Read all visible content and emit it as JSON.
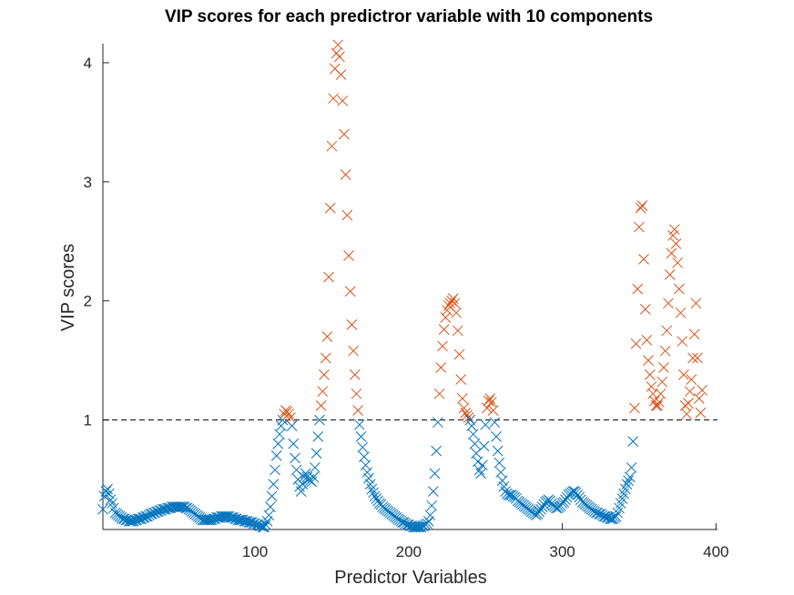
{
  "chart_data": {
    "type": "scatter",
    "title": "VIP scores for each predictror variable with 10 components",
    "xlabel": "Predictor Variables",
    "ylabel": "VIP scores",
    "xlim": [
      1,
      401
    ],
    "ylim": [
      0.08,
      4.16
    ],
    "xticks": [
      100,
      200,
      300,
      400
    ],
    "yticks": [
      1,
      2,
      3,
      4
    ],
    "grid": false,
    "legend": "none",
    "marker": "x",
    "threshold": 1,
    "threshold_style": "dashed",
    "colors": {
      "below": "#0072BD",
      "above": "#D95319",
      "threshold": "#000000",
      "axis": "#262626"
    },
    "series": [
      {
        "values": [
          0.25,
          0.36,
          0.4,
          0.42,
          0.38,
          0.33,
          0.3,
          0.26,
          0.22,
          0.21,
          0.2,
          0.19,
          0.18,
          0.17,
          0.17,
          0.16,
          0.16,
          0.15,
          0.15,
          0.15,
          0.15,
          0.16,
          0.16,
          0.17,
          0.17,
          0.17,
          0.18,
          0.18,
          0.19,
          0.19,
          0.2,
          0.21,
          0.21,
          0.22,
          0.22,
          0.23,
          0.23,
          0.24,
          0.24,
          0.25,
          0.25,
          0.25,
          0.26,
          0.26,
          0.26,
          0.27,
          0.27,
          0.27,
          0.27,
          0.27,
          0.27,
          0.27,
          0.27,
          0.27,
          0.26,
          0.26,
          0.25,
          0.24,
          0.23,
          0.22,
          0.21,
          0.2,
          0.19,
          0.18,
          0.17,
          0.16,
          0.16,
          0.16,
          0.16,
          0.16,
          0.16,
          0.16,
          0.17,
          0.17,
          0.18,
          0.18,
          0.18,
          0.19,
          0.19,
          0.19,
          0.19,
          0.19,
          0.19,
          0.18,
          0.18,
          0.18,
          0.17,
          0.17,
          0.16,
          0.16,
          0.16,
          0.16,
          0.15,
          0.15,
          0.15,
          0.14,
          0.14,
          0.14,
          0.13,
          0.13,
          0.12,
          0.12,
          0.11,
          0.11,
          0.1,
          0.1,
          0.12,
          0.15,
          0.2,
          0.27,
          0.36,
          0.46,
          0.58,
          0.7,
          0.8,
          0.88,
          0.95,
          1.0,
          1.05,
          1.08,
          1.07,
          1.05,
          1.02,
          0.95,
          0.8,
          0.68,
          0.58,
          0.5,
          0.44,
          0.4,
          0.46,
          0.52,
          0.55,
          0.52,
          0.5,
          0.49,
          0.48,
          0.52,
          0.6,
          0.72,
          0.86,
          1.0,
          1.12,
          1.24,
          1.38,
          1.52,
          1.7,
          2.2,
          2.78,
          3.3,
          3.7,
          3.95,
          4.08,
          4.15,
          4.05,
          3.9,
          3.68,
          3.4,
          3.06,
          2.72,
          2.38,
          2.08,
          1.8,
          1.58,
          1.38,
          1.22,
          1.08,
          0.96,
          0.86,
          0.77,
          0.69,
          0.62,
          0.56,
          0.51,
          0.46,
          0.42,
          0.39,
          0.36,
          0.34,
          0.32,
          0.3,
          0.29,
          0.27,
          0.26,
          0.25,
          0.24,
          0.23,
          0.22,
          0.21,
          0.2,
          0.19,
          0.18,
          0.17,
          0.16,
          0.15,
          0.14,
          0.14,
          0.13,
          0.12,
          0.12,
          0.11,
          0.11,
          0.1,
          0.1,
          0.1,
          0.1,
          0.1,
          0.1,
          0.11,
          0.11,
          0.12,
          0.13,
          0.15,
          0.2,
          0.28,
          0.4,
          0.55,
          0.74,
          0.98,
          1.22,
          1.44,
          1.62,
          1.76,
          1.86,
          1.92,
          1.96,
          1.98,
          2.0,
          2.02,
          1.98,
          1.9,
          1.75,
          1.55,
          1.34,
          1.18,
          1.1,
          1.06,
          1.04,
          1.02,
          1.0,
          0.95,
          0.88,
          0.8,
          0.72,
          0.65,
          0.58,
          0.55,
          0.62,
          0.78,
          0.96,
          1.1,
          1.16,
          1.18,
          1.15,
          1.08,
          0.98,
          0.86,
          0.74,
          0.64,
          0.56,
          0.49,
          0.44,
          0.4,
          0.38,
          0.37,
          0.37,
          0.37,
          0.36,
          0.35,
          0.34,
          0.32,
          0.31,
          0.3,
          0.29,
          0.28,
          0.27,
          0.26,
          0.25,
          0.24,
          0.23,
          0.22,
          0.21,
          0.2,
          0.21,
          0.23,
          0.25,
          0.27,
          0.29,
          0.31,
          0.32,
          0.33,
          0.32,
          0.3,
          0.28,
          0.27,
          0.26,
          0.26,
          0.27,
          0.28,
          0.3,
          0.31,
          0.33,
          0.35,
          0.37,
          0.38,
          0.39,
          0.4,
          0.4,
          0.39,
          0.37,
          0.35,
          0.33,
          0.31,
          0.3,
          0.29,
          0.28,
          0.27,
          0.26,
          0.25,
          0.24,
          0.23,
          0.22,
          0.22,
          0.21,
          0.21,
          0.2,
          0.19,
          0.19,
          0.18,
          0.18,
          0.17,
          0.17,
          0.17,
          0.18,
          0.19,
          0.22,
          0.26,
          0.3,
          0.34,
          0.38,
          0.42,
          0.46,
          0.49,
          0.52,
          0.6,
          0.82,
          1.1,
          1.64,
          2.1,
          2.62,
          2.78,
          2.8,
          2.35,
          1.93,
          1.67,
          1.5,
          1.38,
          1.28,
          1.22,
          1.16,
          1.12,
          1.12,
          1.15,
          1.22,
          1.32,
          1.44,
          1.58,
          1.75,
          1.98,
          2.22,
          2.4,
          2.55,
          2.6,
          2.48,
          2.32,
          2.1,
          1.9,
          1.66,
          1.38,
          1.12,
          1.05,
          1.14,
          1.24,
          1.34,
          1.52,
          1.72,
          1.98,
          1.52,
          1.18,
          1.06,
          1.25
        ]
      }
    ]
  }
}
